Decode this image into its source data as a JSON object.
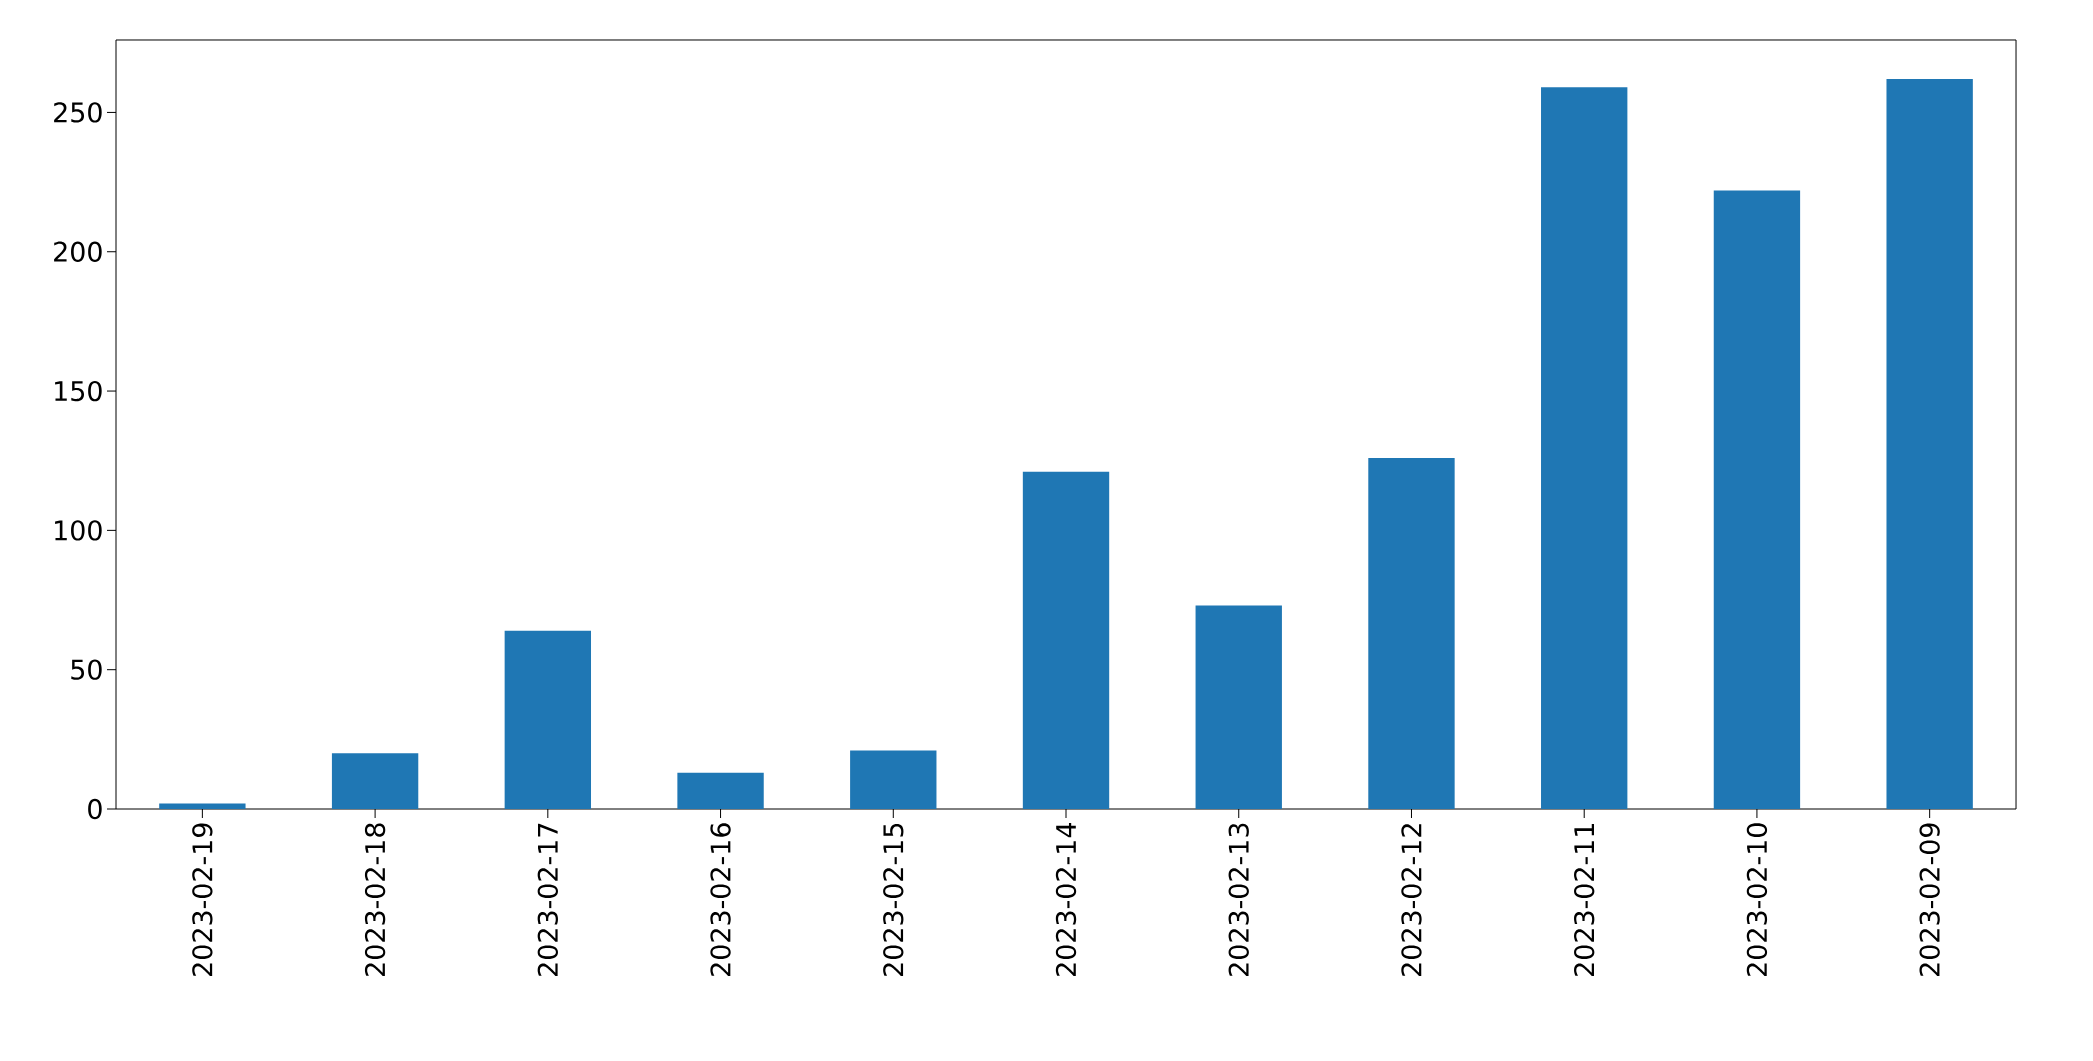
{
  "chart_data": {
    "type": "bar",
    "categories": [
      "2023-02-19",
      "2023-02-18",
      "2023-02-17",
      "2023-02-16",
      "2023-02-15",
      "2023-02-14",
      "2023-02-13",
      "2023-02-12",
      "2023-02-11",
      "2023-02-10",
      "2023-02-09"
    ],
    "values": [
      2,
      20,
      64,
      13,
      21,
      121,
      73,
      126,
      259,
      222,
      262
    ],
    "color": "#1f77b4",
    "ylim": [
      0,
      276
    ],
    "yticks": [
      0,
      50,
      100,
      150,
      200,
      250
    ]
  }
}
